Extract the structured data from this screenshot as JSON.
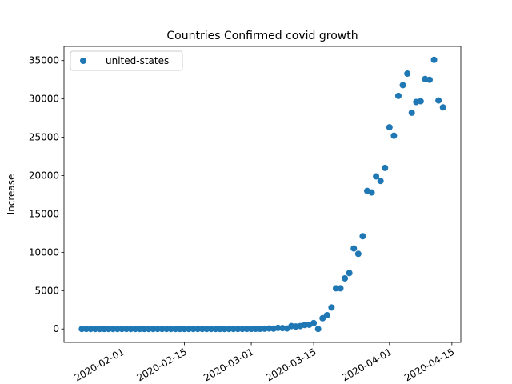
{
  "chart_data": {
    "type": "scatter",
    "title": "Countries Confirmed covid growth",
    "ylabel": "Increase",
    "x": [
      "2020-01-23",
      "2020-01-24",
      "2020-01-25",
      "2020-01-26",
      "2020-01-27",
      "2020-01-28",
      "2020-01-29",
      "2020-01-30",
      "2020-01-31",
      "2020-02-01",
      "2020-02-02",
      "2020-02-03",
      "2020-02-04",
      "2020-02-05",
      "2020-02-06",
      "2020-02-07",
      "2020-02-08",
      "2020-02-09",
      "2020-02-10",
      "2020-02-11",
      "2020-02-12",
      "2020-02-13",
      "2020-02-14",
      "2020-02-15",
      "2020-02-16",
      "2020-02-17",
      "2020-02-18",
      "2020-02-19",
      "2020-02-20",
      "2020-02-21",
      "2020-02-22",
      "2020-02-23",
      "2020-02-24",
      "2020-02-25",
      "2020-02-26",
      "2020-02-27",
      "2020-02-28",
      "2020-02-29",
      "2020-03-01",
      "2020-03-02",
      "2020-03-03",
      "2020-03-04",
      "2020-03-05",
      "2020-03-06",
      "2020-03-07",
      "2020-03-08",
      "2020-03-09",
      "2020-03-10",
      "2020-03-11",
      "2020-03-12",
      "2020-03-13",
      "2020-03-14",
      "2020-03-15",
      "2020-03-16",
      "2020-03-17",
      "2020-03-18",
      "2020-03-19",
      "2020-03-20",
      "2020-03-21",
      "2020-03-22",
      "2020-03-23",
      "2020-03-24",
      "2020-03-25",
      "2020-03-26",
      "2020-03-27",
      "2020-03-28",
      "2020-03-29",
      "2020-03-30",
      "2020-03-31",
      "2020-04-01",
      "2020-04-02",
      "2020-04-03",
      "2020-04-04",
      "2020-04-05",
      "2020-04-06",
      "2020-04-07",
      "2020-04-08",
      "2020-04-09",
      "2020-04-10",
      "2020-04-11",
      "2020-04-12",
      "2020-04-13"
    ],
    "series": [
      {
        "name": "united-states",
        "color": "#1f77b4",
        "values": [
          0,
          1,
          0,
          3,
          0,
          0,
          0,
          0,
          1,
          1,
          1,
          0,
          3,
          0,
          0,
          0,
          0,
          0,
          0,
          0,
          1,
          0,
          0,
          0,
          0,
          0,
          0,
          0,
          0,
          1,
          0,
          0,
          0,
          0,
          1,
          0,
          0,
          8,
          6,
          23,
          20,
          31,
          68,
          45,
          140,
          116,
          65,
          376,
          322,
          382,
          516,
          548,
          772,
          0,
          1400,
          1800,
          2800,
          5300,
          5300,
          6600,
          7300,
          10500,
          9800,
          12100,
          18000,
          17800,
          19900,
          19300,
          21000,
          26300,
          25200,
          30400,
          31800,
          33300,
          28200,
          29600,
          29700,
          32600,
          32500,
          35100,
          29800,
          28900
        ]
      }
    ],
    "xlim": [
      "2020-01-19",
      "2020-04-17"
    ],
    "xticks": [
      "2020-02-01",
      "2020-02-15",
      "2020-03-01",
      "2020-03-15",
      "2020-04-01",
      "2020-04-15"
    ],
    "ylim": [
      -1750,
      36850
    ],
    "yticks": [
      0,
      5000,
      10000,
      15000,
      20000,
      25000,
      30000,
      35000
    ],
    "legend": "upper left"
  }
}
